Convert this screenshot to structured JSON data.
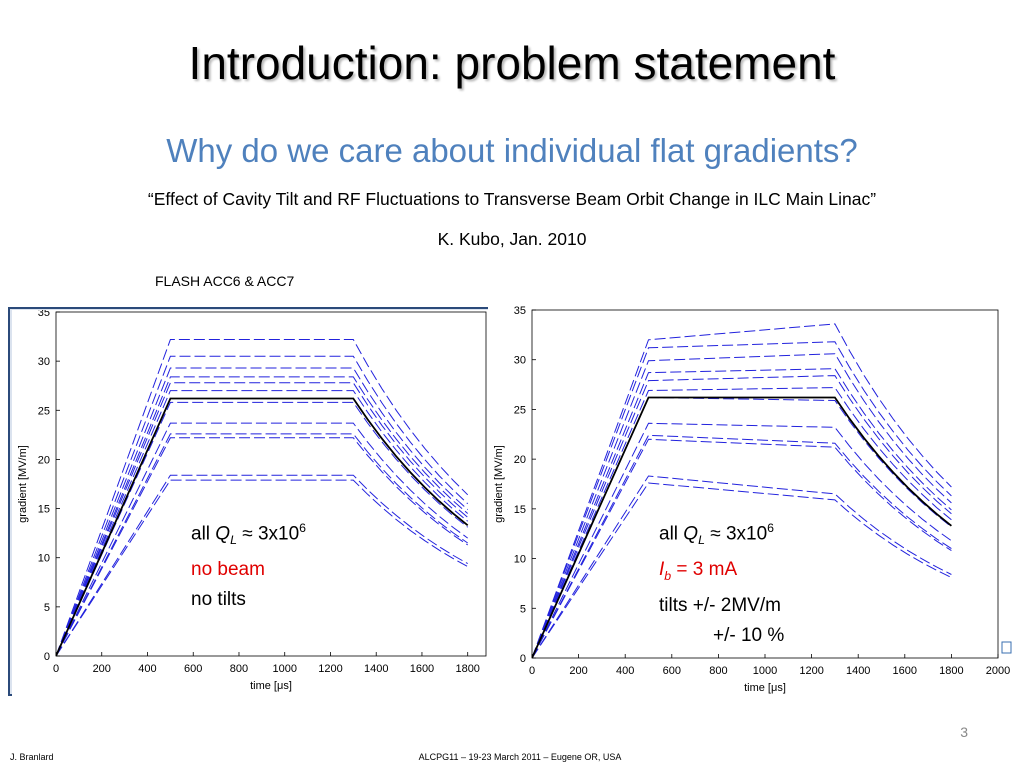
{
  "slide": {
    "title": "Introduction: problem statement",
    "subtitle": "Why do we care about individual flat gradients?",
    "reference": "“Effect of Cavity Tilt and RF Fluctuations to Transverse Beam Orbit Change in ILC Main Linac”",
    "author": "K. Kubo, Jan. 2010",
    "caption": "FLASH ACC6 & ACC7",
    "page_number": "3",
    "footer_left": "J. Branlard",
    "footer_center": "ALCPG11 – 19-23 March 2011 – Eugene OR, USA"
  },
  "notes": {
    "left": {
      "prefix": "all ",
      "q": "Q",
      "q_sub": "L",
      "approx": " ≈ 3x10",
      "exp": "6",
      "line2": "no beam",
      "line3": "no tilts"
    },
    "right": {
      "prefix": "all ",
      "q": "Q",
      "q_sub": "L",
      "approx": " ≈ 3x10",
      "exp": "6",
      "ib": "I",
      "ib_sub": "b",
      "ib_rest": " = 3 mA",
      "line3": "tilts  +/- 2MV/m",
      "line4": "+/- 10 %"
    }
  },
  "colors": {
    "dashed": "#2222dd",
    "solid": "#000000",
    "red": "#e00000",
    "subtitle": "#4f81bd"
  },
  "chart_data": [
    {
      "type": "line",
      "xlabel": "time [μs]",
      "ylabel": "gradient [MV/m]",
      "xlim": [
        0,
        1880
      ],
      "ylim": [
        0,
        35
      ],
      "xticks": [
        0,
        200,
        400,
        600,
        800,
        1000,
        1200,
        1400,
        1600,
        1800
      ],
      "yticks": [
        0,
        5,
        10,
        15,
        20,
        25,
        30,
        35
      ],
      "fill_end": 500,
      "flat_end": 1300,
      "decay_end": 1800,
      "series": [
        {
          "style": "solid",
          "flat": 26.2,
          "end": 13.3
        },
        {
          "style": "dashed",
          "flat": 32.2,
          "end": 16.4
        },
        {
          "style": "dashed",
          "flat": 30.5,
          "end": 15.5
        },
        {
          "style": "dashed",
          "flat": 29.3,
          "end": 14.9
        },
        {
          "style": "dashed",
          "flat": 28.4,
          "end": 14.5
        },
        {
          "style": "dashed",
          "flat": 27.8,
          "end": 14.1
        },
        {
          "style": "dashed",
          "flat": 27.0,
          "end": 13.7
        },
        {
          "style": "dashed",
          "flat": 25.8,
          "end": 13.1
        },
        {
          "style": "dashed",
          "flat": 23.7,
          "end": 12.0
        },
        {
          "style": "dashed",
          "flat": 22.6,
          "end": 11.5
        },
        {
          "style": "dashed",
          "flat": 22.2,
          "end": 11.3
        },
        {
          "style": "dashed",
          "flat": 18.4,
          "end": 9.4
        },
        {
          "style": "dashed",
          "flat": 17.9,
          "end": 9.1
        }
      ]
    },
    {
      "type": "line",
      "xlabel": "time [μs]",
      "ylabel": "gradient [MV/m]",
      "xlim": [
        0,
        2000
      ],
      "ylim": [
        0,
        35
      ],
      "xticks": [
        0,
        200,
        400,
        600,
        800,
        1000,
        1200,
        1400,
        1600,
        1800,
        2000
      ],
      "yticks": [
        0,
        5,
        10,
        15,
        20,
        25,
        30,
        35
      ],
      "fill_end": 500,
      "flat_end": 1300,
      "decay_end": 1800,
      "series": [
        {
          "style": "solid",
          "flat": 26.2,
          "flat_end_value": 26.2,
          "end": 13.3
        },
        {
          "style": "dashed",
          "flat": 32.0,
          "flat_end_value": 33.6,
          "end": 17.2
        },
        {
          "style": "dashed",
          "flat": 31.2,
          "flat_end_value": 31.8,
          "end": 16.3
        },
        {
          "style": "dashed",
          "flat": 29.9,
          "flat_end_value": 30.6,
          "end": 15.6
        },
        {
          "style": "dashed",
          "flat": 28.7,
          "flat_end_value": 29.1,
          "end": 14.9
        },
        {
          "style": "dashed",
          "flat": 27.9,
          "flat_end_value": 28.4,
          "end": 14.5
        },
        {
          "style": "dashed",
          "flat": 26.9,
          "flat_end_value": 27.2,
          "end": 13.9
        },
        {
          "style": "dashed",
          "flat": 26.2,
          "flat_end_value": 25.9,
          "end": 13.2
        },
        {
          "style": "dashed",
          "flat": 23.6,
          "flat_end_value": 23.2,
          "end": 11.8
        },
        {
          "style": "dashed",
          "flat": 22.4,
          "flat_end_value": 21.6,
          "end": 11.0
        },
        {
          "style": "dashed",
          "flat": 22.0,
          "flat_end_value": 21.2,
          "end": 10.8
        },
        {
          "style": "dashed",
          "flat": 18.3,
          "flat_end_value": 16.5,
          "end": 8.4
        },
        {
          "style": "dashed",
          "flat": 17.6,
          "flat_end_value": 15.9,
          "end": 8.1
        }
      ]
    }
  ]
}
